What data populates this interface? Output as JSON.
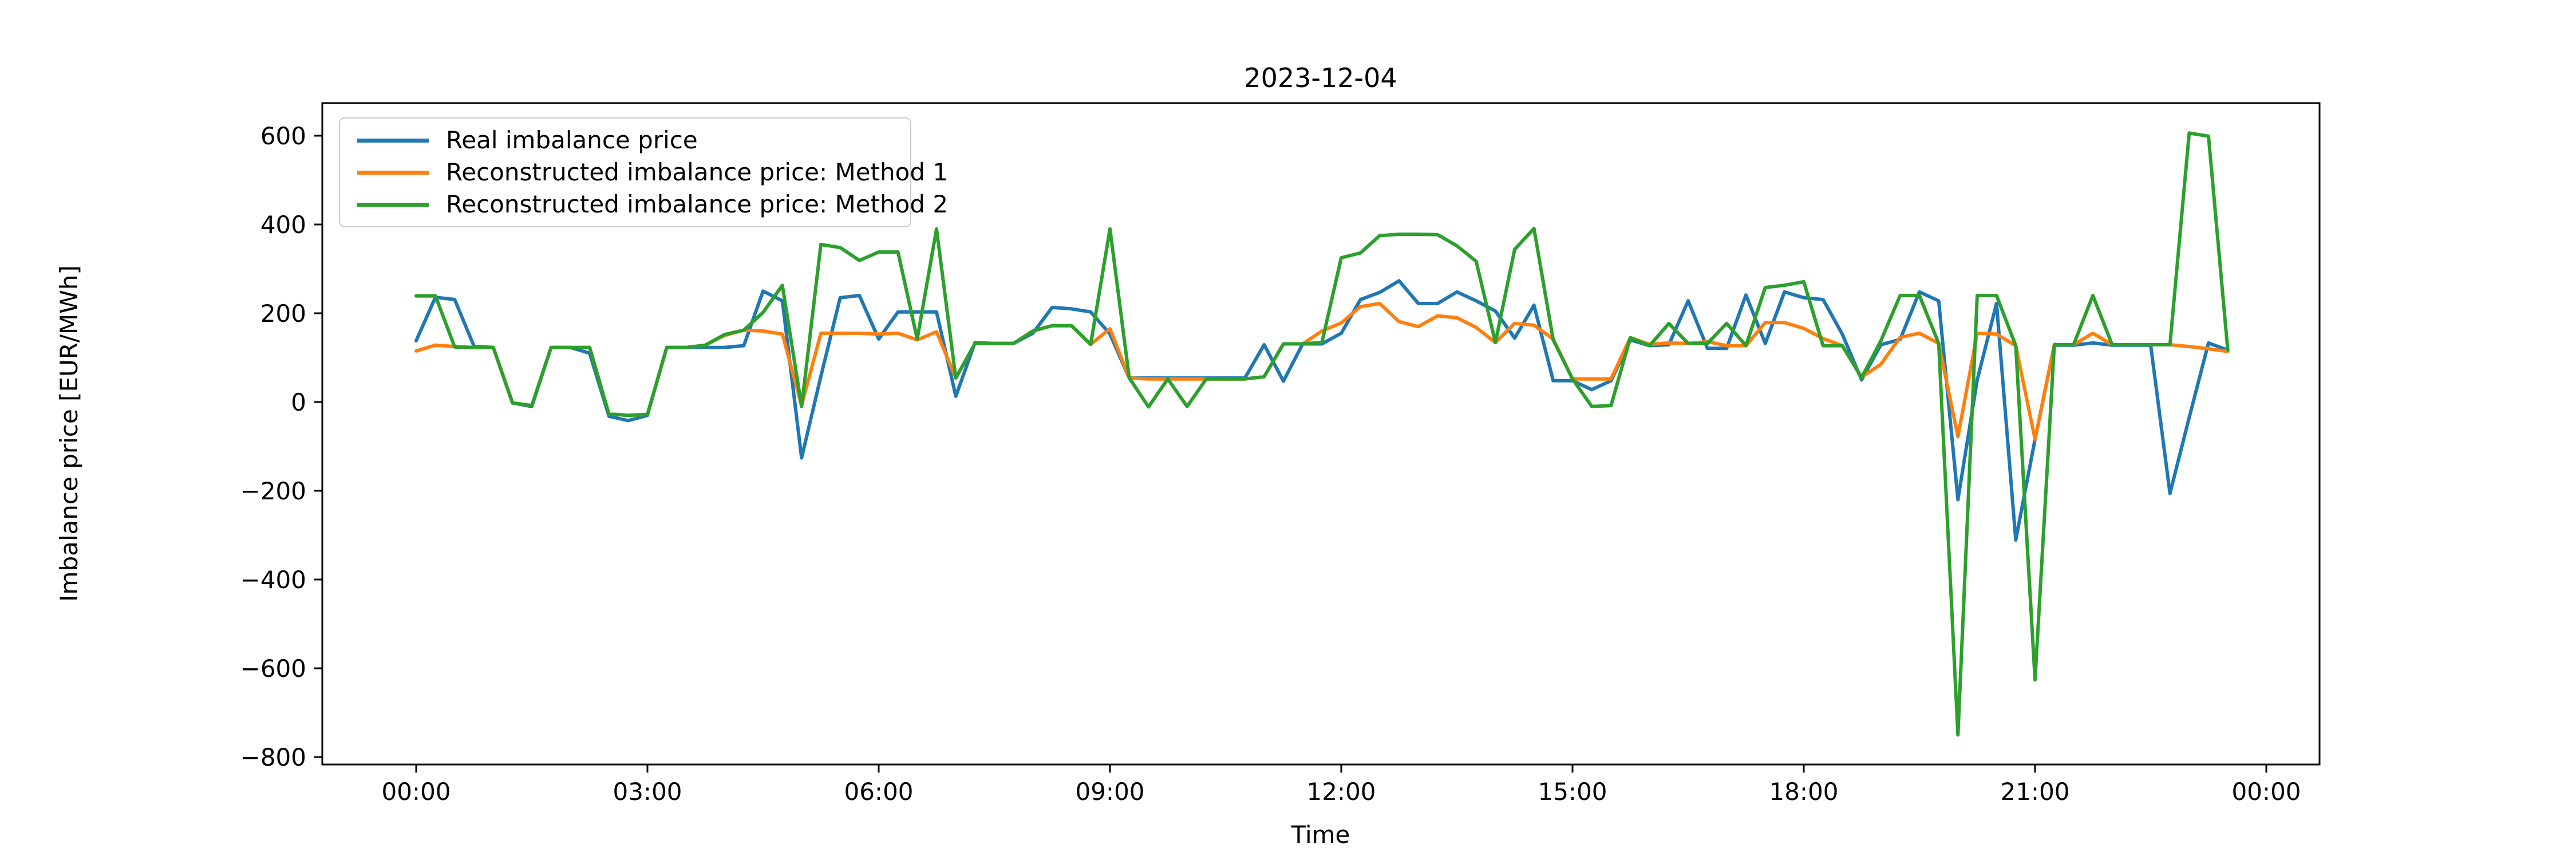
{
  "chart_data": {
    "type": "line",
    "title": "2023-12-04",
    "xlabel": "Time",
    "ylabel": "Imbalance price [EUR/MWh]",
    "legend_position": "upper left",
    "grid": false,
    "x_tick_labels": [
      "00:00",
      "03:00",
      "06:00",
      "09:00",
      "12:00",
      "15:00",
      "18:00",
      "21:00",
      "00:00"
    ],
    "y_ticks": [
      -800,
      -600,
      -400,
      -200,
      0,
      200,
      400,
      600
    ],
    "ylim": [
      -818,
      668
    ],
    "x": [
      "00:00",
      "00:15",
      "00:30",
      "00:45",
      "01:00",
      "01:15",
      "01:30",
      "01:45",
      "02:00",
      "02:15",
      "02:30",
      "02:45",
      "03:00",
      "03:15",
      "03:30",
      "03:45",
      "04:00",
      "04:15",
      "04:30",
      "04:45",
      "05:00",
      "05:15",
      "05:30",
      "05:45",
      "06:00",
      "06:15",
      "06:30",
      "06:45",
      "07:00",
      "07:15",
      "07:30",
      "07:45",
      "08:00",
      "08:15",
      "08:30",
      "08:45",
      "09:00",
      "09:15",
      "09:30",
      "09:45",
      "10:00",
      "10:15",
      "10:30",
      "10:45",
      "11:00",
      "11:15",
      "11:30",
      "11:45",
      "12:00",
      "12:15",
      "12:30",
      "12:45",
      "13:00",
      "13:15",
      "13:30",
      "13:45",
      "14:00",
      "14:15",
      "14:30",
      "14:45",
      "15:00",
      "15:15",
      "15:30",
      "15:45",
      "16:00",
      "16:15",
      "16:30",
      "16:45",
      "17:00",
      "17:15",
      "17:30",
      "17:45",
      "18:00",
      "18:15",
      "18:30",
      "18:45",
      "19:00",
      "19:15",
      "19:30",
      "19:45",
      "20:00",
      "20:15",
      "20:30",
      "20:45",
      "21:00",
      "21:15",
      "21:30",
      "21:45",
      "22:00",
      "22:15",
      "22:30",
      "22:45",
      "23:00",
      "23:15",
      "23:30"
    ],
    "series": [
      {
        "name": "Real imbalance price",
        "color": "#1f77b4",
        "values": [
          138,
          236,
          231,
          126,
          123,
          -2,
          -10,
          123,
          123,
          110,
          -32,
          -42,
          -30,
          123,
          123,
          123,
          123,
          127,
          250,
          228,
          -126,
          58,
          235,
          240,
          142,
          203,
          203,
          203,
          13,
          134,
          132,
          132,
          155,
          213,
          210,
          203,
          153,
          54,
          54,
          54,
          54,
          54,
          54,
          54,
          129,
          47,
          131,
          131,
          155,
          231,
          247,
          273,
          222,
          222,
          248,
          228,
          205,
          144,
          218,
          48,
          48,
          28,
          48,
          140,
          127,
          129,
          228,
          121,
          121,
          241,
          132,
          248,
          235,
          231,
          153,
          50,
          129,
          141,
          248,
          228,
          -220,
          50,
          222,
          -311,
          -84,
          128,
          128,
          133,
          128,
          128,
          128,
          -206,
          -35,
          133,
          117
        ]
      },
      {
        "name": "Reconstructed imbalance price: Method 1",
        "color": "#ff7f0e",
        "values": [
          115,
          128,
          125,
          123,
          123,
          -2,
          -8,
          123,
          123,
          123,
          -27,
          -30,
          -28,
          123,
          123,
          128,
          150,
          162,
          160,
          153,
          -8,
          155,
          155,
          155,
          153,
          155,
          140,
          158,
          54,
          132,
          132,
          132,
          160,
          172,
          172,
          130,
          165,
          54,
          52,
          52,
          52,
          52,
          52,
          52,
          57,
          131,
          131,
          160,
          178,
          215,
          222,
          181,
          170,
          194,
          190,
          168,
          134,
          177,
          173,
          142,
          52,
          52,
          52,
          145,
          130,
          133,
          132,
          136,
          127,
          127,
          179,
          179,
          166,
          143,
          127,
          56,
          85,
          146,
          155,
          132,
          -78,
          155,
          153,
          127,
          -84,
          129,
          129,
          155,
          129,
          129,
          129,
          129,
          125,
          120,
          114
        ]
      },
      {
        "name": "Reconstructed imbalance price: Method 2",
        "color": "#2ca02c",
        "values": [
          239,
          239,
          124,
          123,
          123,
          -2,
          -8,
          123,
          123,
          123,
          -27,
          -30,
          -28,
          123,
          123,
          128,
          152,
          162,
          202,
          263,
          -10,
          355,
          348,
          319,
          338,
          338,
          142,
          390,
          54,
          132,
          132,
          132,
          160,
          172,
          172,
          130,
          390,
          54,
          -11,
          52,
          -10,
          52,
          52,
          52,
          57,
          131,
          131,
          134,
          325,
          336,
          375,
          378,
          378,
          377,
          352,
          317,
          134,
          344,
          391,
          140,
          52,
          -10,
          -8,
          145,
          127,
          177,
          132,
          132,
          177,
          127,
          258,
          263,
          271,
          127,
          127,
          55,
          138,
          240,
          240,
          132,
          -750,
          240,
          240,
          127,
          -626,
          129,
          129,
          240,
          129,
          129,
          129,
          129,
          606,
          599,
          117
        ]
      }
    ]
  }
}
